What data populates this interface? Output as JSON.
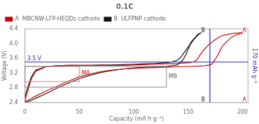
{
  "chart_data": {
    "type": "line",
    "title": "0.1C",
    "xlabel": "Capacity (mA h g⁻¹)",
    "ylabel": "Voltage (V)",
    "xlim": [
      0,
      205
    ],
    "ylim": [
      2.4,
      4.4
    ],
    "xticks": [
      0,
      50,
      100,
      150,
      200
    ],
    "yticks": [
      2.4,
      2.8,
      3.2,
      3.6,
      {
        "value": 4.0,
        "label": "4.0"
      },
      4.4
    ],
    "grid": false,
    "legend": "upper left",
    "series": [
      {
        "name": "A  MBCNW-LFP-HEQDs cathode",
        "color": "#cc0000",
        "x": [
          0,
          3,
          6,
          10,
          20,
          30,
          40,
          50,
          60,
          70,
          80,
          90,
          100,
          110,
          120,
          130,
          140,
          150,
          155,
          158,
          160,
          163,
          166,
          168,
          170,
          172,
          174,
          176,
          178,
          180,
          182,
          185,
          188,
          190,
          192,
          195,
          198,
          200
        ],
        "values": [
          2.45,
          2.75,
          3.05,
          3.25,
          3.38,
          3.4,
          3.41,
          3.41,
          3.41,
          3.41,
          3.41,
          3.41,
          3.42,
          3.43,
          3.44,
          3.45,
          3.46,
          3.48,
          3.5,
          3.56,
          3.65,
          3.78,
          3.88,
          3.94,
          3.99,
          4.04,
          4.09,
          4.13,
          4.17,
          4.2,
          4.22,
          4.24,
          4.26,
          4.27,
          4.28,
          4.28,
          4.29,
          4.29
        ]
      },
      {
        "name": "A  MBCNW-LFP-HEQDs cathode",
        "color": "#cc0000",
        "x": [
          200,
          198,
          195,
          192,
          190,
          188,
          185,
          182,
          180,
          178,
          175,
          172,
          170,
          165,
          160,
          150,
          140,
          130,
          120,
          110,
          100,
          90,
          80,
          70,
          60,
          50,
          40,
          30,
          20,
          10,
          5,
          0
        ],
        "values": [
          4.29,
          4.27,
          4.24,
          4.21,
          4.17,
          4.12,
          4.04,
          3.95,
          3.85,
          3.73,
          3.58,
          3.45,
          3.42,
          3.4,
          3.39,
          3.38,
          3.37,
          3.36,
          3.35,
          3.34,
          3.33,
          3.31,
          3.28,
          3.24,
          3.18,
          3.1,
          2.98,
          2.85,
          2.72,
          2.58,
          2.5,
          2.42
        ]
      },
      {
        "name": "B  ULFPNP cathode",
        "color": "#111111",
        "x": [
          0,
          3,
          6,
          10,
          20,
          30,
          40,
          50,
          60,
          70,
          80,
          90,
          100,
          110,
          120,
          130,
          135,
          140,
          143,
          145,
          147,
          149,
          151,
          153,
          155,
          157,
          158,
          159,
          160,
          161,
          162
        ],
        "values": [
          2.55,
          2.85,
          3.1,
          3.28,
          3.38,
          3.4,
          3.41,
          3.41,
          3.41,
          3.42,
          3.42,
          3.43,
          3.44,
          3.45,
          3.46,
          3.48,
          3.5,
          3.55,
          3.62,
          3.7,
          3.78,
          3.87,
          3.95,
          4.05,
          4.12,
          4.18,
          4.22,
          4.25,
          4.27,
          4.28,
          4.29
        ]
      },
      {
        "name": "B  ULFPNP cathode",
        "color": "#111111",
        "x": [
          162,
          160,
          158,
          155,
          152,
          150,
          148,
          145,
          140,
          130,
          120,
          110,
          100,
          90,
          80,
          70,
          60,
          50,
          40,
          30,
          20,
          10,
          5,
          0
        ],
        "values": [
          4.29,
          4.26,
          4.2,
          4.1,
          3.98,
          3.85,
          3.7,
          3.55,
          3.42,
          3.38,
          3.37,
          3.36,
          3.34,
          3.31,
          3.27,
          3.22,
          3.14,
          3.05,
          2.93,
          2.8,
          2.65,
          2.52,
          2.45,
          2.42
        ]
      }
    ],
    "hline": {
      "y": 3.5,
      "color": "#2222cc"
    },
    "vline": {
      "x": 170,
      "color": "#2222cc",
      "label": "170 mAh g⁻¹"
    },
    "boxes": [
      {
        "x0": 0,
        "x1": 50,
        "y0": 2.97,
        "y1": 3.38,
        "color": "#e08080"
      },
      {
        "x0": 0,
        "x1": 130,
        "y0": 2.82,
        "y1": 3.38,
        "color": "#888888"
      }
    ],
    "annotations": [
      {
        "text": "MA",
        "x": 52,
        "y": 3.14,
        "color": "#cc0000"
      },
      {
        "text": "MB",
        "x": 132,
        "y": 3.05,
        "color": "#555555"
      },
      {
        "text": "B",
        "x": 162,
        "y": 4.29,
        "color": "#111111"
      },
      {
        "text": "B",
        "x": 162,
        "y": 2.42,
        "color": "#111111"
      },
      {
        "text": "A",
        "x": 200,
        "y": 4.29,
        "color": "#cc0000"
      },
      {
        "text": "A",
        "x": 200,
        "y": 2.42,
        "color": "#cc0000"
      },
      {
        "text": "3.5 V",
        "x": 2,
        "y": 3.52,
        "color": "#2222cc"
      }
    ]
  }
}
